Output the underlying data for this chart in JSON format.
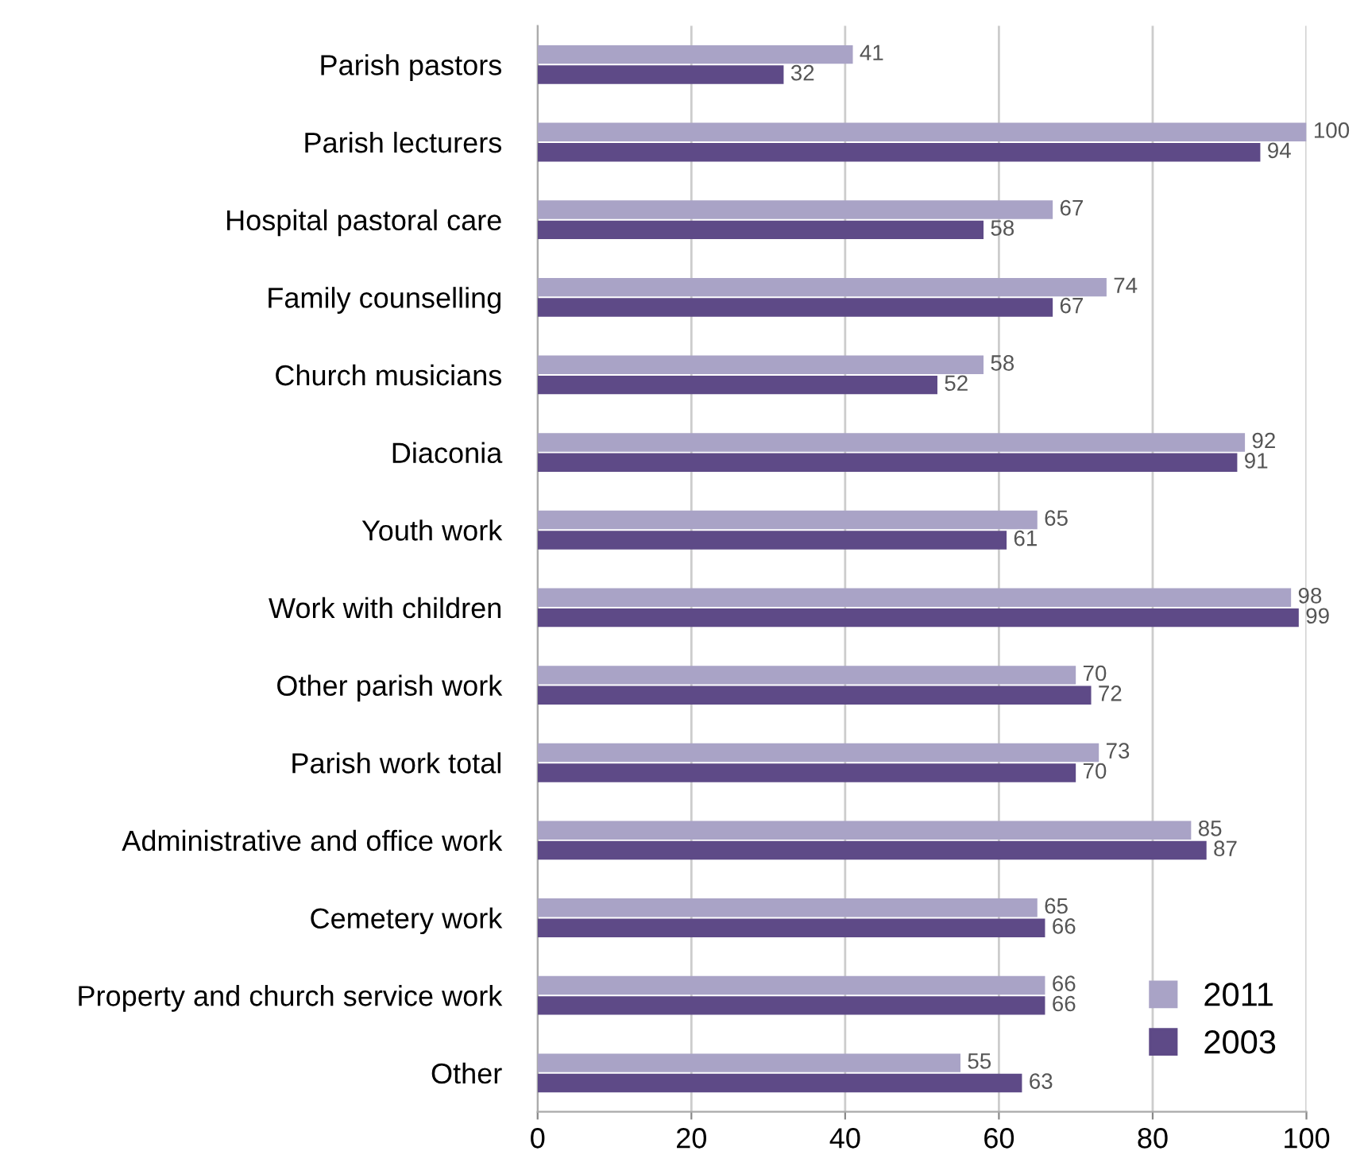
{
  "chart_data": {
    "type": "bar",
    "orientation": "horizontal",
    "categories": [
      "Parish pastors",
      "Parish lecturers",
      "Hospital pastoral care",
      "Family counselling",
      "Church musicians",
      "Diaconia",
      "Youth work",
      "Work with children",
      "Other parish work",
      "Parish work total",
      "Administrative and office work",
      "Cemetery work",
      "Property and church service work",
      "Other"
    ],
    "series": [
      {
        "name": "2011",
        "color": "#a9a3c6",
        "values": [
          41,
          100,
          67,
          74,
          58,
          92,
          65,
          98,
          70,
          73,
          85,
          65,
          66,
          55
        ]
      },
      {
        "name": "2003",
        "color": "#5e4a87",
        "values": [
          32,
          94,
          58,
          67,
          52,
          91,
          61,
          99,
          72,
          70,
          87,
          66,
          66,
          63
        ]
      }
    ],
    "xlim": [
      0,
      100
    ],
    "xticks": [
      0,
      20,
      40,
      60,
      80,
      100
    ],
    "grid": "x",
    "legend": "bottom right",
    "data_labels": true
  }
}
